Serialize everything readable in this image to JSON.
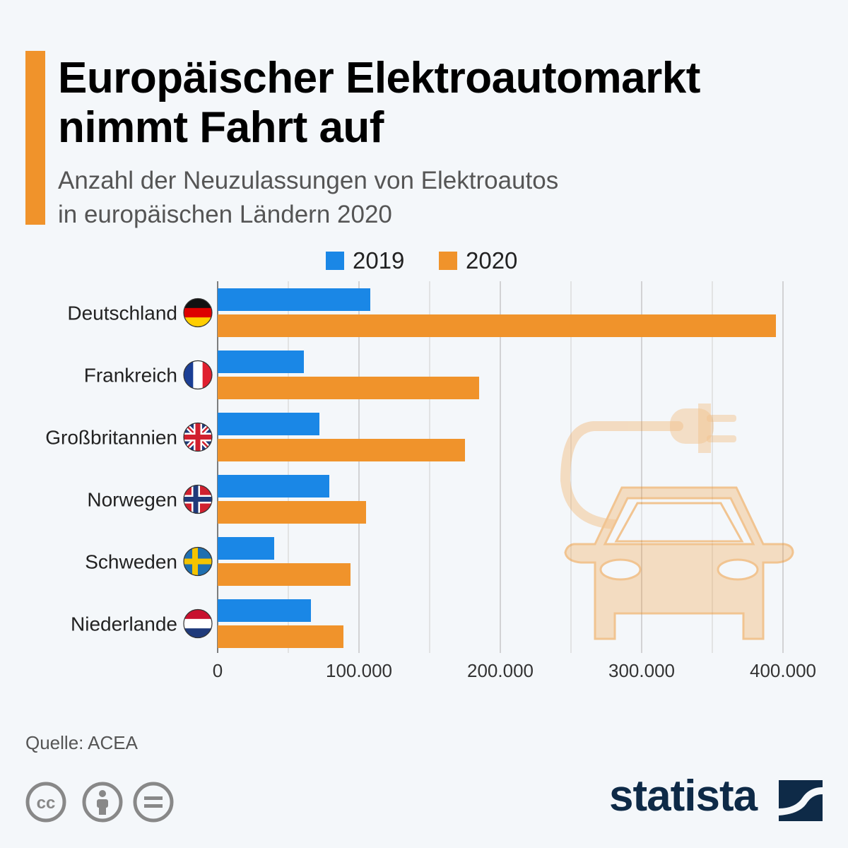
{
  "title": [
    "Europäischer Elektroautomarkt",
    "nimmt Fahrt auf"
  ],
  "subtitle": [
    "Anzahl der Neuzulassungen von Elektroautos",
    "in europäischen Ländern 2020"
  ],
  "source": "Quelle: ACEA",
  "brand": "statista",
  "colors": {
    "series_2019": "#1a87e6",
    "series_2020": "#f0932b",
    "accent": "#f0932b",
    "brand": "#0e2a47"
  },
  "chart_data": {
    "type": "bar",
    "orientation": "horizontal",
    "categories": [
      "Deutschland",
      "Frankreich",
      "Großbritannien",
      "Norwegen",
      "Schweden",
      "Niederlande"
    ],
    "series": [
      {
        "name": "2019",
        "color": "#1a87e6",
        "values": [
          108000,
          61000,
          72000,
          79000,
          40000,
          66000
        ]
      },
      {
        "name": "2020",
        "color": "#f0932b",
        "values": [
          395000,
          185000,
          175000,
          105000,
          94000,
          89000
        ]
      }
    ],
    "xlim": [
      0,
      400000
    ],
    "xticks": [
      0,
      100000,
      200000,
      300000,
      400000
    ],
    "xtick_labels": [
      "0",
      "100.000",
      "200.000",
      "300.000",
      "400.000"
    ],
    "grid": true,
    "legend_position": "top"
  },
  "icons": [
    "flag-de-icon",
    "flag-fr-icon",
    "flag-gb-icon",
    "flag-no-icon",
    "flag-se-icon",
    "flag-nl-icon",
    "electric-car-icon",
    "cc-icon",
    "by-icon",
    "nd-icon",
    "statista-logo-icon"
  ]
}
